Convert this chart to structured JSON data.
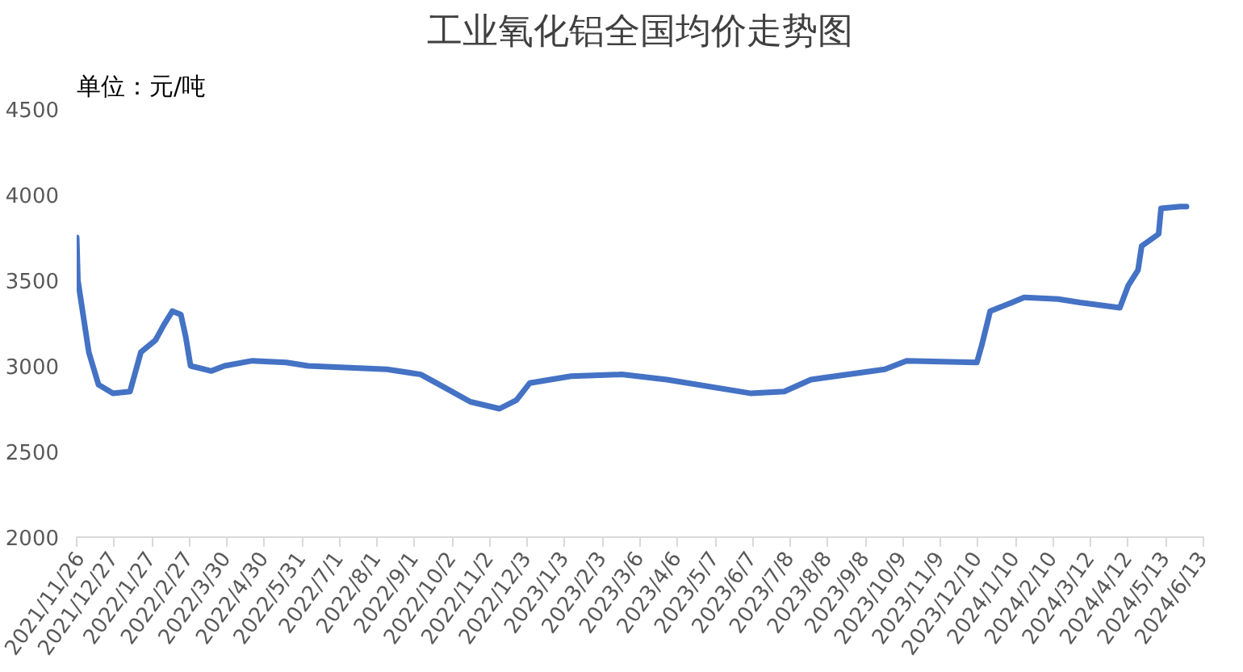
{
  "chart_data": {
    "type": "line",
    "title": "工业氧化铝全国均价走势图",
    "ylabel": "单位：元/吨",
    "x": [
      "2021-11-26",
      "2021-11-27",
      "2021-12-06",
      "2021-12-14",
      "2021-12-26",
      "2022-01-09",
      "2022-01-18",
      "2022-01-30",
      "2022-02-06",
      "2022-02-13",
      "2022-02-20",
      "2022-02-24",
      "2022-02-28",
      "2022-03-17",
      "2022-03-28",
      "2022-04-20",
      "2022-05-18",
      "2022-06-05",
      "2022-08-09",
      "2022-09-06",
      "2022-09-24",
      "2022-10-17",
      "2022-11-10",
      "2022-11-24",
      "2022-12-05",
      "2023-01-08",
      "2023-02-19",
      "2023-03-28",
      "2023-06-05",
      "2023-07-03",
      "2023-07-25",
      "2023-09-24",
      "2023-10-12",
      "2023-12-09",
      "2023-12-13",
      "2023-12-20",
      "2024-01-07",
      "2024-01-17",
      "2024-02-14",
      "2024-03-03",
      "2024-04-05",
      "2024-04-12",
      "2024-04-20",
      "2024-04-23",
      "2024-05-07",
      "2024-05-09",
      "2024-05-25",
      "2024-05-30"
    ],
    "series": [
      {
        "color": "#4472c4",
        "values": [
          3750,
          3500,
          3080,
          2890,
          2840,
          2850,
          3080,
          3150,
          3240,
          3320,
          3300,
          3170,
          3000,
          2970,
          3000,
          3030,
          3020,
          3000,
          2980,
          2950,
          2880,
          2790,
          2750,
          2800,
          2900,
          2940,
          2950,
          2920,
          2840,
          2850,
          2920,
          2980,
          3030,
          3020,
          3120,
          3320,
          3370,
          3400,
          3390,
          3370,
          3340,
          3470,
          3560,
          3700,
          3770,
          3920,
          3930,
          3930
        ]
      }
    ],
    "ylim": [
      2000,
      4500
    ],
    "yticks": [
      2000,
      2500,
      3000,
      3500,
      4000,
      4500
    ],
    "xlim": [
      "2021-11-26",
      "2024-06-13"
    ],
    "xticks": [
      {
        "value": "2021-11-26",
        "label": "2021/11/26"
      },
      {
        "value": "2021-12-27",
        "label": "2021/12/27"
      },
      {
        "value": "2022-01-27",
        "label": "2022/1/27"
      },
      {
        "value": "2022-02-27",
        "label": "2022/2/27"
      },
      {
        "value": "2022-03-30",
        "label": "2022/3/30"
      },
      {
        "value": "2022-04-30",
        "label": "2022/4/30"
      },
      {
        "value": "2022-05-31",
        "label": "2022/5/31"
      },
      {
        "value": "2022-07-01",
        "label": "2022/7/1"
      },
      {
        "value": "2022-08-01",
        "label": "2022/8/1"
      },
      {
        "value": "2022-09-01",
        "label": "2022/9/1"
      },
      {
        "value": "2022-10-02",
        "label": "2022/10/2"
      },
      {
        "value": "2022-11-02",
        "label": "2022/11/2"
      },
      {
        "value": "2022-12-03",
        "label": "2022/12/3"
      },
      {
        "value": "2023-01-03",
        "label": "2023/1/3"
      },
      {
        "value": "2023-02-03",
        "label": "2023/2/3"
      },
      {
        "value": "2023-03-06",
        "label": "2023/3/6"
      },
      {
        "value": "2023-04-06",
        "label": "2023/4/6"
      },
      {
        "value": "2023-05-07",
        "label": "2023/5/7"
      },
      {
        "value": "2023-06-07",
        "label": "2023/6/7"
      },
      {
        "value": "2023-07-08",
        "label": "2023/7/8"
      },
      {
        "value": "2023-08-08",
        "label": "2023/8/8"
      },
      {
        "value": "2023-09-08",
        "label": "2023/9/8"
      },
      {
        "value": "2023-10-09",
        "label": "2023/10/9"
      },
      {
        "value": "2023-11-09",
        "label": "2023/11/9"
      },
      {
        "value": "2023-12-10",
        "label": "2023/12/10"
      },
      {
        "value": "2024-01-10",
        "label": "2024/1/10"
      },
      {
        "value": "2024-02-10",
        "label": "2024/2/10"
      },
      {
        "value": "2024-03-12",
        "label": "2024/3/12"
      },
      {
        "value": "2024-04-12",
        "label": "2024/4/12"
      },
      {
        "value": "2024-05-13",
        "label": "2024/5/13"
      },
      {
        "value": "2024-06-13",
        "label": "2024/6/13"
      }
    ],
    "grid": false,
    "marker": "none",
    "line_style": "solid"
  }
}
